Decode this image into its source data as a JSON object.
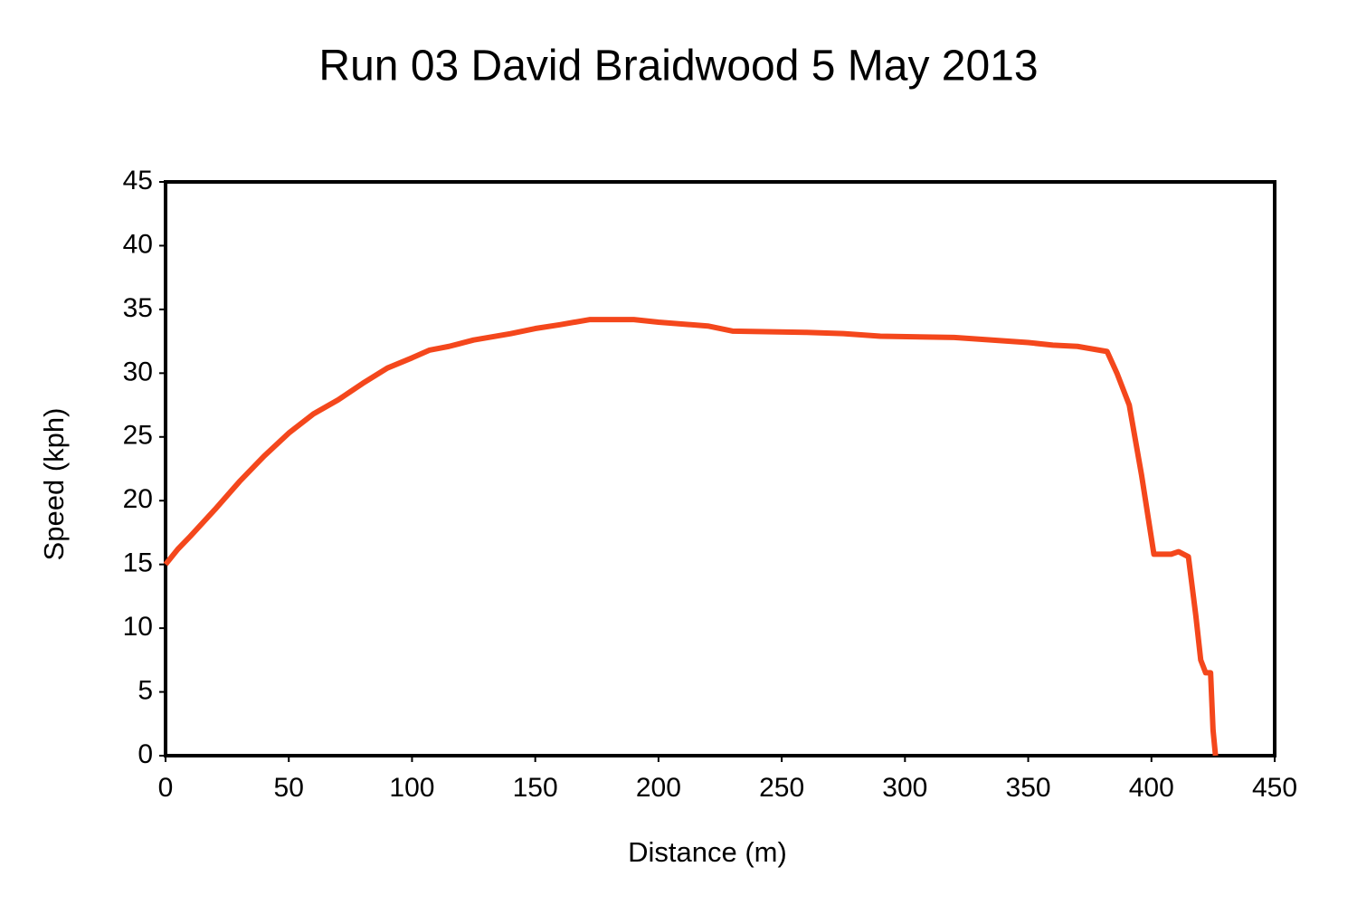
{
  "chart_data": {
    "type": "line",
    "title": "Run 03 David Braidwood 5 May 2013",
    "x_label": "Distance (m)",
    "y_label": "Speed (kph)",
    "xlim": [
      0,
      450
    ],
    "xticks": [
      0,
      50,
      100,
      150,
      200,
      250,
      300,
      350,
      400,
      450
    ],
    "ylim": [
      0,
      45
    ],
    "yticks": [
      0,
      5,
      10,
      15,
      20,
      25,
      30,
      35,
      40,
      45
    ],
    "grid": false,
    "series": [
      {
        "color": "#f4471c",
        "x": [
          0,
          5,
          10,
          20,
          30,
          40,
          50,
          60,
          70,
          80,
          90,
          100,
          107,
          115,
          125,
          140,
          150,
          160,
          172,
          190,
          200,
          220,
          230,
          260,
          275,
          290,
          320,
          350,
          360,
          370,
          382,
          386,
          391,
          396,
          401,
          408,
          411,
          415,
          418,
          420,
          422,
          424,
          425,
          426
        ],
        "values": [
          15,
          16.2,
          17.2,
          19.3,
          21.5,
          23.5,
          25.3,
          26.8,
          27.9,
          29.2,
          30.4,
          31.2,
          31.8,
          32.1,
          32.6,
          33.1,
          33.5,
          33.8,
          34.2,
          34.2,
          34.0,
          33.7,
          33.3,
          33.2,
          33.1,
          32.9,
          32.8,
          32.4,
          32.2,
          32.1,
          31.7,
          30,
          27.5,
          22,
          15.8,
          15.8,
          16,
          15.6,
          11,
          7.5,
          6.5,
          6.5,
          2,
          0
        ]
      }
    ]
  }
}
